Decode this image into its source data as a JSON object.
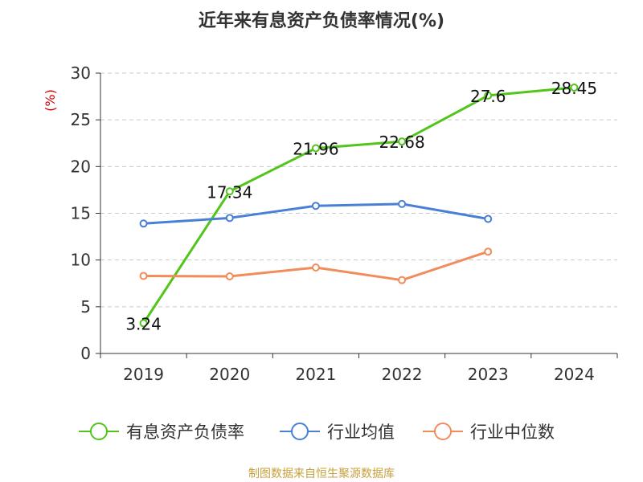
{
  "chart_data": {
    "type": "line",
    "title": "近年来有息资产负债率情况(%)",
    "ylabel": "(%)",
    "xlabel": "",
    "categories": [
      "2019",
      "2020",
      "2021",
      "2022",
      "2023",
      "2024"
    ],
    "ylim": [
      0,
      30
    ],
    "yticks": [
      0,
      5,
      10,
      15,
      20,
      25,
      30
    ],
    "grid": true,
    "legend_position": "bottom",
    "series": [
      {
        "name": "有息资产负债率",
        "color": "#52c41a",
        "values": [
          3.24,
          17.34,
          21.96,
          22.68,
          27.6,
          28.45
        ],
        "labels": [
          "3.24",
          "17.34",
          "21.96",
          "22.68",
          "27.6",
          "28.45"
        ]
      },
      {
        "name": "行业均值",
        "color": "#4a7fd6",
        "values": [
          13.9,
          14.5,
          15.8,
          16.0,
          14.4,
          null
        ]
      },
      {
        "name": "行业中位数",
        "color": "#f28c5a",
        "values": [
          8.3,
          8.25,
          9.2,
          7.85,
          10.9,
          null
        ]
      }
    ],
    "source": "制图数据来自恒生聚源数据库"
  }
}
